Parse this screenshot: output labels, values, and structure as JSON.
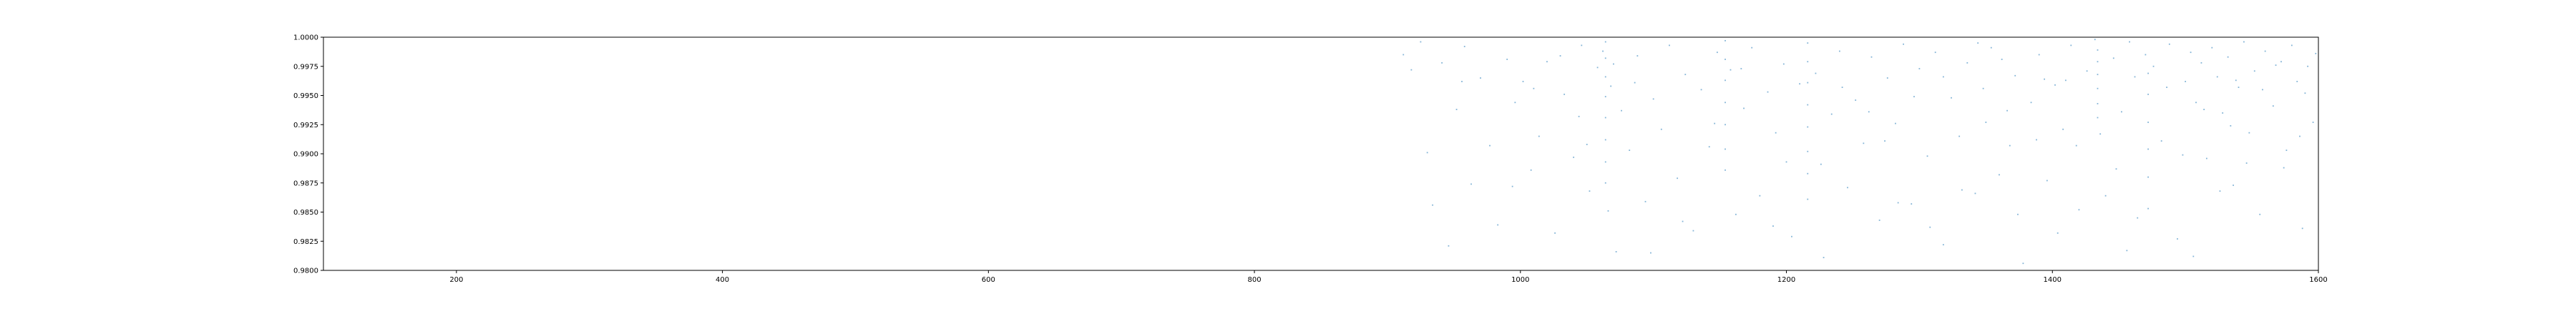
{
  "chart_data": {
    "type": "scatter",
    "title": "",
    "xlabel": "",
    "ylabel": "",
    "xlim": [
      100,
      1600
    ],
    "ylim": [
      0.98,
      1.0
    ],
    "x_ticks": [
      200,
      400,
      600,
      800,
      1000,
      1200,
      1400,
      1600
    ],
    "x_tick_labels": [
      "200",
      "400",
      "600",
      "800",
      "1000",
      "1200",
      "1400",
      "1600"
    ],
    "y_ticks": [
      0.98,
      0.9825,
      0.985,
      0.9875,
      0.99,
      0.9925,
      0.995,
      0.9975,
      1.0
    ],
    "y_tick_labels": [
      "0.9800",
      "0.9825",
      "0.9850",
      "0.9875",
      "0.9900",
      "0.9925",
      "0.9950",
      "0.9975",
      "1.0000"
    ],
    "grid": false,
    "marker_color": "#1f77b4",
    "series": [
      {
        "points": [
          [
            912,
            0.9985
          ],
          [
            918,
            0.9972
          ],
          [
            925,
            0.9996
          ],
          [
            930,
            0.9901
          ],
          [
            934,
            0.9856
          ],
          [
            941,
            0.9978
          ],
          [
            946,
            0.9821
          ],
          [
            952,
            0.9938
          ],
          [
            958,
            0.9992
          ],
          [
            963,
            0.9874
          ],
          [
            970,
            0.9965
          ],
          [
            977,
            0.9907
          ],
          [
            983,
            0.9839
          ],
          [
            990,
            0.9981
          ],
          [
            996,
            0.9944
          ],
          [
            1002,
            0.9962
          ],
          [
            1008,
            0.9886
          ],
          [
            1014,
            0.9915
          ],
          [
            1020,
            0.9979
          ],
          [
            1026,
            0.9832
          ],
          [
            1033,
            0.9951
          ],
          [
            1040,
            0.9897
          ],
          [
            1046,
            0.9993
          ],
          [
            1052,
            0.9868
          ],
          [
            1058,
            0.9974
          ],
          [
            1062,
            0.9988
          ],
          [
            1064,
            0.9996
          ],
          [
            1064,
            0.9982
          ],
          [
            1064,
            0.9966
          ],
          [
            1064,
            0.9949
          ],
          [
            1064,
            0.9931
          ],
          [
            1064,
            0.9912
          ],
          [
            1064,
            0.9893
          ],
          [
            1064,
            0.9875
          ],
          [
            1066,
            0.9851
          ],
          [
            1068,
            0.9958
          ],
          [
            1070,
            0.9977
          ],
          [
            1072,
            0.9816
          ],
          [
            1076,
            0.9937
          ],
          [
            1082,
            0.9903
          ],
          [
            1088,
            0.9984
          ],
          [
            1094,
            0.9859
          ],
          [
            1100,
            0.9947
          ],
          [
            1106,
            0.9921
          ],
          [
            1112,
            0.9993
          ],
          [
            1118,
            0.9879
          ],
          [
            1124,
            0.9968
          ],
          [
            1130,
            0.9834
          ],
          [
            1136,
            0.9955
          ],
          [
            1142,
            0.9906
          ],
          [
            1148,
            0.9987
          ],
          [
            1154,
            0.9997
          ],
          [
            1154,
            0.9981
          ],
          [
            1154,
            0.9963
          ],
          [
            1154,
            0.9944
          ],
          [
            1154,
            0.9925
          ],
          [
            1154,
            0.9904
          ],
          [
            1154,
            0.9886
          ],
          [
            1158,
            0.9972
          ],
          [
            1162,
            0.9848
          ],
          [
            1168,
            0.9939
          ],
          [
            1174,
            0.9991
          ],
          [
            1180,
            0.9864
          ],
          [
            1186,
            0.9953
          ],
          [
            1192,
            0.9918
          ],
          [
            1198,
            0.9977
          ],
          [
            1204,
            0.9829
          ],
          [
            1210,
            0.996
          ],
          [
            1216,
            0.9995
          ],
          [
            1216,
            0.9979
          ],
          [
            1216,
            0.9961
          ],
          [
            1216,
            0.9942
          ],
          [
            1216,
            0.9923
          ],
          [
            1216,
            0.9902
          ],
          [
            1216,
            0.9883
          ],
          [
            1216,
            0.9861
          ],
          [
            1222,
            0.9969
          ],
          [
            1228,
            0.9811
          ],
          [
            1234,
            0.9934
          ],
          [
            1240,
            0.9988
          ],
          [
            1246,
            0.9871
          ],
          [
            1252,
            0.9946
          ],
          [
            1258,
            0.9909
          ],
          [
            1264,
            0.9983
          ],
          [
            1270,
            0.9843
          ],
          [
            1276,
            0.9965
          ],
          [
            1282,
            0.9926
          ],
          [
            1288,
            0.9994
          ],
          [
            1294,
            0.9857
          ],
          [
            1300,
            0.9973
          ],
          [
            1306,
            0.9898
          ],
          [
            1312,
            0.9987
          ],
          [
            1318,
            0.9822
          ],
          [
            1324,
            0.9948
          ],
          [
            1330,
            0.9915
          ],
          [
            1336,
            0.9978
          ],
          [
            1342,
            0.9866
          ],
          [
            1348,
            0.9956
          ],
          [
            1354,
            0.9991
          ],
          [
            1360,
            0.9882
          ],
          [
            1366,
            0.9937
          ],
          [
            1372,
            0.9967
          ],
          [
            1378,
            0.9806
          ],
          [
            1384,
            0.9944
          ],
          [
            1390,
            0.9985
          ],
          [
            1396,
            0.9877
          ],
          [
            1402,
            0.9959
          ],
          [
            1408,
            0.9921
          ],
          [
            1414,
            0.9993
          ],
          [
            1420,
            0.9852
          ],
          [
            1426,
            0.9971
          ],
          [
            1432,
            0.9998
          ],
          [
            1434,
            0.9989
          ],
          [
            1434,
            0.9979
          ],
          [
            1434,
            0.9968
          ],
          [
            1434,
            0.9956
          ],
          [
            1434,
            0.9943
          ],
          [
            1434,
            0.9931
          ],
          [
            1436,
            0.9917
          ],
          [
            1440,
            0.9864
          ],
          [
            1446,
            0.9982
          ],
          [
            1452,
            0.9936
          ],
          [
            1458,
            0.9996
          ],
          [
            1464,
            0.9845
          ],
          [
            1470,
            0.9985
          ],
          [
            1472,
            0.9969
          ],
          [
            1472,
            0.9951
          ],
          [
            1472,
            0.9927
          ],
          [
            1472,
            0.9904
          ],
          [
            1472,
            0.988
          ],
          [
            1472,
            0.9853
          ],
          [
            1476,
            0.9975
          ],
          [
            1482,
            0.9911
          ],
          [
            1488,
            0.9994
          ],
          [
            1494,
            0.9827
          ],
          [
            1500,
            0.9962
          ],
          [
            1504,
            0.9987
          ],
          [
            1508,
            0.9944
          ],
          [
            1512,
            0.9978
          ],
          [
            1516,
            0.9896
          ],
          [
            1520,
            0.9991
          ],
          [
            1524,
            0.9966
          ],
          [
            1528,
            0.9935
          ],
          [
            1532,
            0.9983
          ],
          [
            1536,
            0.9873
          ],
          [
            1540,
            0.9957
          ],
          [
            1544,
            0.9996
          ],
          [
            1548,
            0.9918
          ],
          [
            1552,
            0.9971
          ],
          [
            1556,
            0.9848
          ],
          [
            1560,
            0.9988
          ],
          [
            1566,
            0.9941
          ],
          [
            1572,
            0.9979
          ],
          [
            1576,
            0.9903
          ],
          [
            1580,
            0.9993
          ],
          [
            1584,
            0.9962
          ],
          [
            1588,
            0.9836
          ],
          [
            1592,
            0.9975
          ],
          [
            1596,
            0.9927
          ],
          [
            1598,
            0.9986
          ],
          [
            1010,
            0.9956
          ],
          [
            1044,
            0.9932
          ],
          [
            1086,
            0.9961
          ],
          [
            1122,
            0.9842
          ],
          [
            1166,
            0.9973
          ],
          [
            1200,
            0.9893
          ],
          [
            1242,
            0.9957
          ],
          [
            1274,
            0.9911
          ],
          [
            1296,
            0.9949
          ],
          [
            1332,
            0.9869
          ],
          [
            1362,
            0.9981
          ],
          [
            1388,
            0.9912
          ],
          [
            1410,
            0.9963
          ],
          [
            1448,
            0.9887
          ],
          [
            1486,
            0.9957
          ],
          [
            1514,
            0.9938
          ],
          [
            1534,
            0.9924
          ],
          [
            1558,
            0.9955
          ],
          [
            1574,
            0.9888
          ],
          [
            1590,
            0.9952
          ],
          [
            1308,
            0.9837
          ],
          [
            1350,
            0.9927
          ],
          [
            1418,
            0.9907
          ],
          [
            1456,
            0.9817
          ],
          [
            1498,
            0.9899
          ],
          [
            1526,
            0.9868
          ],
          [
            1546,
            0.9892
          ],
          [
            1568,
            0.9976
          ],
          [
            1284,
            0.9858
          ],
          [
            1226,
            0.9891
          ],
          [
            1190,
            0.9838
          ],
          [
            1146,
            0.9926
          ],
          [
            1098,
            0.9815
          ],
          [
            1050,
            0.9908
          ],
          [
            1030,
            0.9984
          ],
          [
            994,
            0.9872
          ],
          [
            956,
            0.9962
          ],
          [
            1374,
            0.9848
          ],
          [
            1404,
            0.9832
          ],
          [
            1462,
            0.9966
          ],
          [
            1506,
            0.9812
          ],
          [
            1538,
            0.9963
          ],
          [
            1586,
            0.9915
          ],
          [
            1262,
            0.9936
          ],
          [
            1318,
            0.9966
          ],
          [
            1344,
            0.9995
          ],
          [
            1368,
            0.9907
          ],
          [
            1394,
            0.9964
          ]
        ]
      }
    ]
  }
}
